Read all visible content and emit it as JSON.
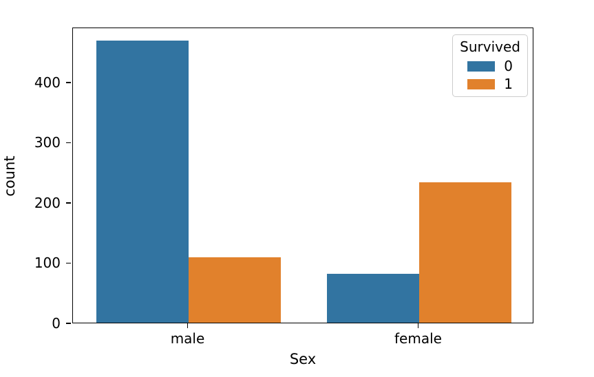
{
  "chart_data": {
    "type": "bar",
    "title": "",
    "xlabel": "Sex",
    "ylabel": "count",
    "categories": [
      "male",
      "female"
    ],
    "series": [
      {
        "name": "0",
        "color": "#3274A1",
        "values": [
          468,
          81
        ]
      },
      {
        "name": "1",
        "color": "#E1812C",
        "values": [
          109,
          233
        ]
      }
    ],
    "legend": {
      "title": "Survived",
      "position": "upper-right"
    },
    "yticks": [
      0,
      100,
      200,
      300,
      400
    ],
    "ylim": [
      0,
      491.4
    ],
    "xlim_units": [
      -0.5,
      1.5
    ],
    "bar_width_units": 0.4,
    "grid": false,
    "colors": {
      "axis": "#000000",
      "text": "#000000",
      "legend_border": "#cccccc",
      "background": "#ffffff"
    }
  }
}
